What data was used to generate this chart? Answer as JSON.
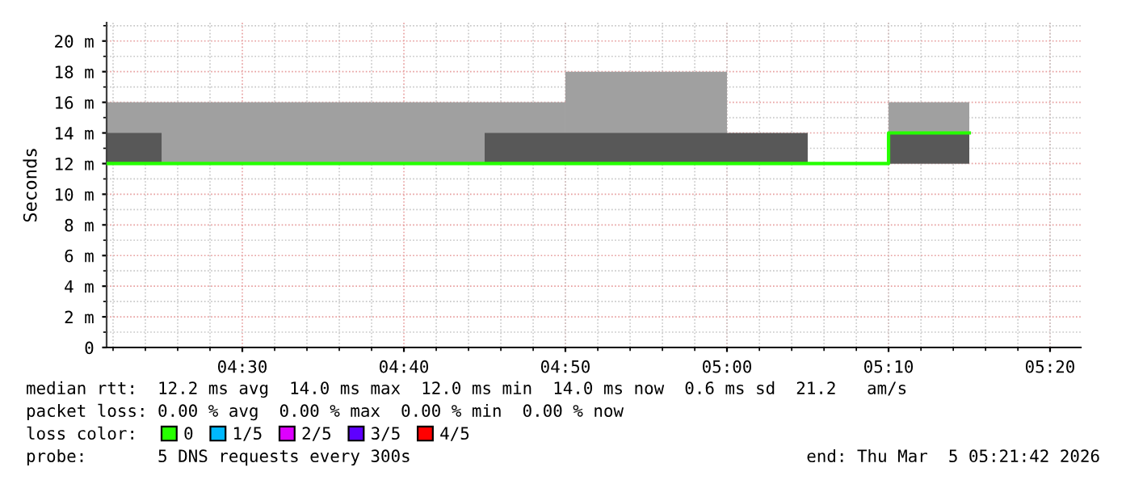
{
  "chart_data": {
    "type": "step",
    "ylabel": "Seconds",
    "legend_title": "loss color:",
    "xlim": [
      4.36,
      5.365
    ],
    "xticks": [
      {
        "value": 4.5,
        "label": "04:30"
      },
      {
        "value": 4.6667,
        "label": "04:40"
      },
      {
        "value": 4.8333,
        "label": "04:50"
      },
      {
        "value": 5.0,
        "label": "05:00"
      },
      {
        "value": 5.1667,
        "label": "05:10"
      },
      {
        "value": 5.3333,
        "label": "05:20"
      }
    ],
    "ylim": [
      0,
      21.2
    ],
    "yticks": [
      0,
      {
        "value": 2,
        "label": "2 m"
      },
      {
        "value": 4,
        "label": "4 m"
      },
      {
        "value": 6,
        "label": "6 m"
      },
      {
        "value": 8,
        "label": "8 m"
      },
      {
        "value": 10,
        "label": "10 m"
      },
      {
        "value": 12,
        "label": "12 m"
      },
      {
        "value": 14,
        "label": "14 m"
      },
      {
        "value": 16,
        "label": "16 m"
      },
      {
        "value": 18,
        "label": "18 m"
      },
      {
        "value": 20,
        "label": "20 m"
      }
    ],
    "grid": true,
    "legend": "bottom",
    "series": [
      {
        "type": "area",
        "color": "#a0a0a0",
        "x": [
          4.36,
          4.8333,
          5.0,
          5.1667,
          5.25
        ],
        "values": [
          null,
          null,
          null,
          null,
          null
        ],
        "lower": [
          12,
          12,
          null,
          12,
          12
        ],
        "upper": [
          16,
          18,
          null,
          16,
          16
        ]
      },
      {
        "type": "area",
        "color": "#585858",
        "x": [
          4.36,
          4.4167,
          4.75,
          5.0833,
          5.1667,
          5.25
        ],
        "values": [
          null,
          null,
          null,
          null,
          null,
          null
        ],
        "lower": [
          12,
          null,
          12,
          null,
          12,
          12
        ],
        "upper": [
          14,
          null,
          14,
          null,
          14,
          14
        ]
      },
      {
        "name": "0",
        "color": "#26ff00",
        "x": [
          4.36,
          5.1667,
          5.25
        ],
        "values": [
          12,
          14,
          14
        ]
      },
      {
        "name": "1/5",
        "color": "#00b8ff"
      },
      {
        "name": "2/5",
        "color": "#dd00ff"
      },
      {
        "name": "3/5",
        "color": "#5e00ff"
      },
      {
        "name": "4/5",
        "color": "#ff0000"
      }
    ],
    "annotations": [
      "median rtt:  12.2 ms avg  14.0 ms max  12.0 ms min  14.0 ms now  0.6 ms sd  21.2   am/s",
      "packet loss: 0.00 % avg  0.00 % max  0.00 % min  0.00 % now",
      "probe:       5 DNS requests every 300s",
      "end: Thu Mar  5 05:21:42 2026"
    ]
  }
}
